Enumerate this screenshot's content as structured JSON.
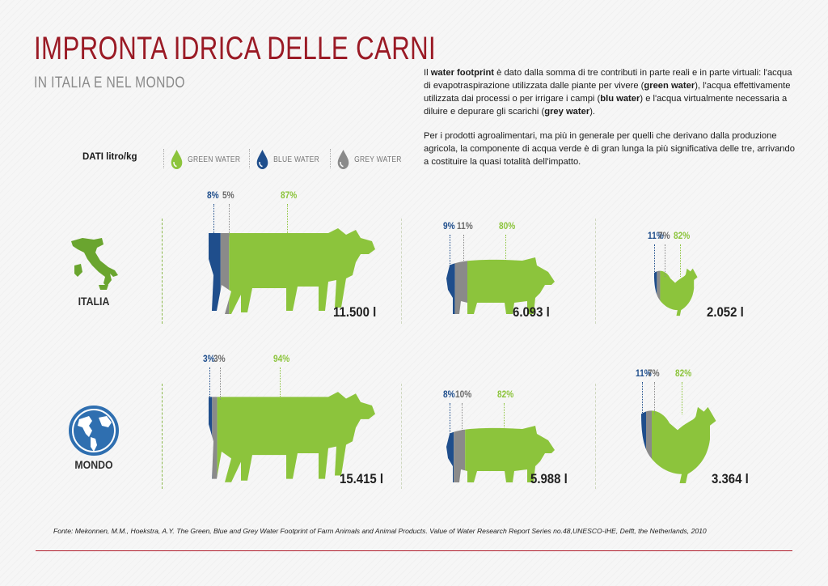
{
  "header": {
    "title": "IMPRONTA IDRICA DELLE CARNI",
    "subtitle": "IN ITALIA E NEL MONDO"
  },
  "intro": {
    "p1_a": "Il ",
    "p1_b": "water footprint",
    "p1_c": " è dato dalla somma di tre contributi in parte reali e in parte virtuali: l'acqua di evapotraspirazione utilizzata dalle piante per vivere (",
    "p1_d": "green water",
    "p1_e": "), l'acqua effettivamente utilizzata dai processi o per irrigare i campi (",
    "p1_f": "blu water",
    "p1_g": ") e l'acqua virtualmente necessaria a diluire e  depurare gli scarichi (",
    "p1_h": "grey water",
    "p1_i": ").",
    "p2": "Per i prodotti agroalimentari, ma più in generale per quelli che derivano dalla produzione agricola, la componente di acqua verde è di gran lunga la più significativa delle tre, arrivando a costituire la quasi totalità dell'impatto."
  },
  "legend": {
    "title": "DATI litro/kg",
    "items": [
      {
        "label": "GREEN WATER",
        "color": "#8cc43c"
      },
      {
        "label": "BLUE WATER",
        "color": "#1f4e8c"
      },
      {
        "label": "GREY WATER",
        "color": "#8a8a8a"
      }
    ]
  },
  "colors": {
    "green": "#8cc43c",
    "blue": "#1f4e8c",
    "grey": "#8a8a8a",
    "title": "#9a1a25"
  },
  "regions": [
    {
      "label": "ITALIA",
      "icon": "italy-map-icon"
    },
    {
      "label": "MONDO",
      "icon": "globe-icon"
    }
  ],
  "chart_data": {
    "type": "bar",
    "unit": "litro/kg",
    "series_names": [
      "Blue water",
      "Grey water",
      "Green water"
    ],
    "groups": [
      {
        "region": "ITALIA",
        "items": [
          {
            "animal": "cow-icon",
            "blue": "8%",
            "grey": "5%",
            "green": "87%",
            "total": "11.500 l",
            "blue_v": 8,
            "grey_v": 5,
            "green_v": 87
          },
          {
            "animal": "pig-icon",
            "blue": "9%",
            "grey": "11%",
            "green": "80%",
            "total": "6.093 l",
            "blue_v": 9,
            "grey_v": 11,
            "green_v": 80
          },
          {
            "animal": "chicken-icon",
            "blue": "11%",
            "grey": "7%",
            "green": "82%",
            "total": "2.052 l",
            "blue_v": 11,
            "grey_v": 7,
            "green_v": 82
          }
        ]
      },
      {
        "region": "MONDO",
        "items": [
          {
            "animal": "cow-icon",
            "blue": "3%",
            "grey": "3%",
            "green": "94%",
            "total": "15.415 l",
            "blue_v": 3,
            "grey_v": 3,
            "green_v": 94
          },
          {
            "animal": "pig-icon",
            "blue": "8%",
            "grey": "10%",
            "green": "82%",
            "total": "5.988 l",
            "blue_v": 8,
            "grey_v": 10,
            "green_v": 82
          },
          {
            "animal": "chicken-icon",
            "blue": "11%",
            "grey": "7%",
            "green": "82%",
            "total": "3.364 l",
            "blue_v": 11,
            "grey_v": 7,
            "green_v": 82
          }
        ]
      }
    ]
  },
  "source": "Fonte: Mekonnen, M.M., Hoekstra, A.Y. The Green, Blue and Grey Water Footprint of Farm Animals and Animal Products. Value of Water Research Report Series no.48,UNESCO-IHE, Delft, the Netherlands, 2010"
}
